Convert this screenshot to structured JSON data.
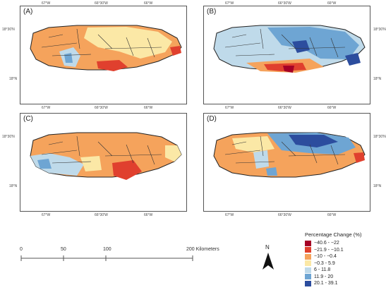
{
  "panels": [
    {
      "label": "(A)",
      "lat_labels": [
        "18°30'N",
        "18°N"
      ],
      "lon_labels": [
        "67°W",
        "66°30'W",
        "66°W"
      ]
    },
    {
      "label": "(B)",
      "lat_labels": [
        "18°30'N",
        "18°N"
      ],
      "lon_labels": [
        "67°W",
        "66°30'W",
        "66°W"
      ]
    },
    {
      "label": "(C)",
      "lat_labels": [
        "18°30'N",
        "18°N"
      ],
      "lon_labels": [
        "67°W",
        "66°30'W",
        "66°W"
      ]
    },
    {
      "label": "(D)",
      "lat_labels": [
        "18°30'N",
        "18°N"
      ],
      "lon_labels": [
        "67°W",
        "66°30'W",
        "66°W"
      ]
    }
  ],
  "scale_bar": {
    "labels": [
      "0",
      "50",
      "100",
      "200 Kilometers"
    ]
  },
  "north_arrow": {
    "label": "N"
  },
  "legend": {
    "title": "Percentage Change (%)",
    "classes": [
      {
        "label": "−40.6 - −22",
        "color": "#a50026"
      },
      {
        "label": "−21.9 - −10.1",
        "color": "#e0402e"
      },
      {
        "label": "−10 - −0.4",
        "color": "#f5a35c"
      },
      {
        "label": "−0.3 - 5.9",
        "color": "#fbe8a6"
      },
      {
        "label": "6 - 11.8",
        "color": "#bfdaea"
      },
      {
        "label": "11.9 - 20",
        "color": "#6ea5d3"
      },
      {
        "label": "20.1 - 39.1",
        "color": "#2c4d9e"
      }
    ]
  }
}
